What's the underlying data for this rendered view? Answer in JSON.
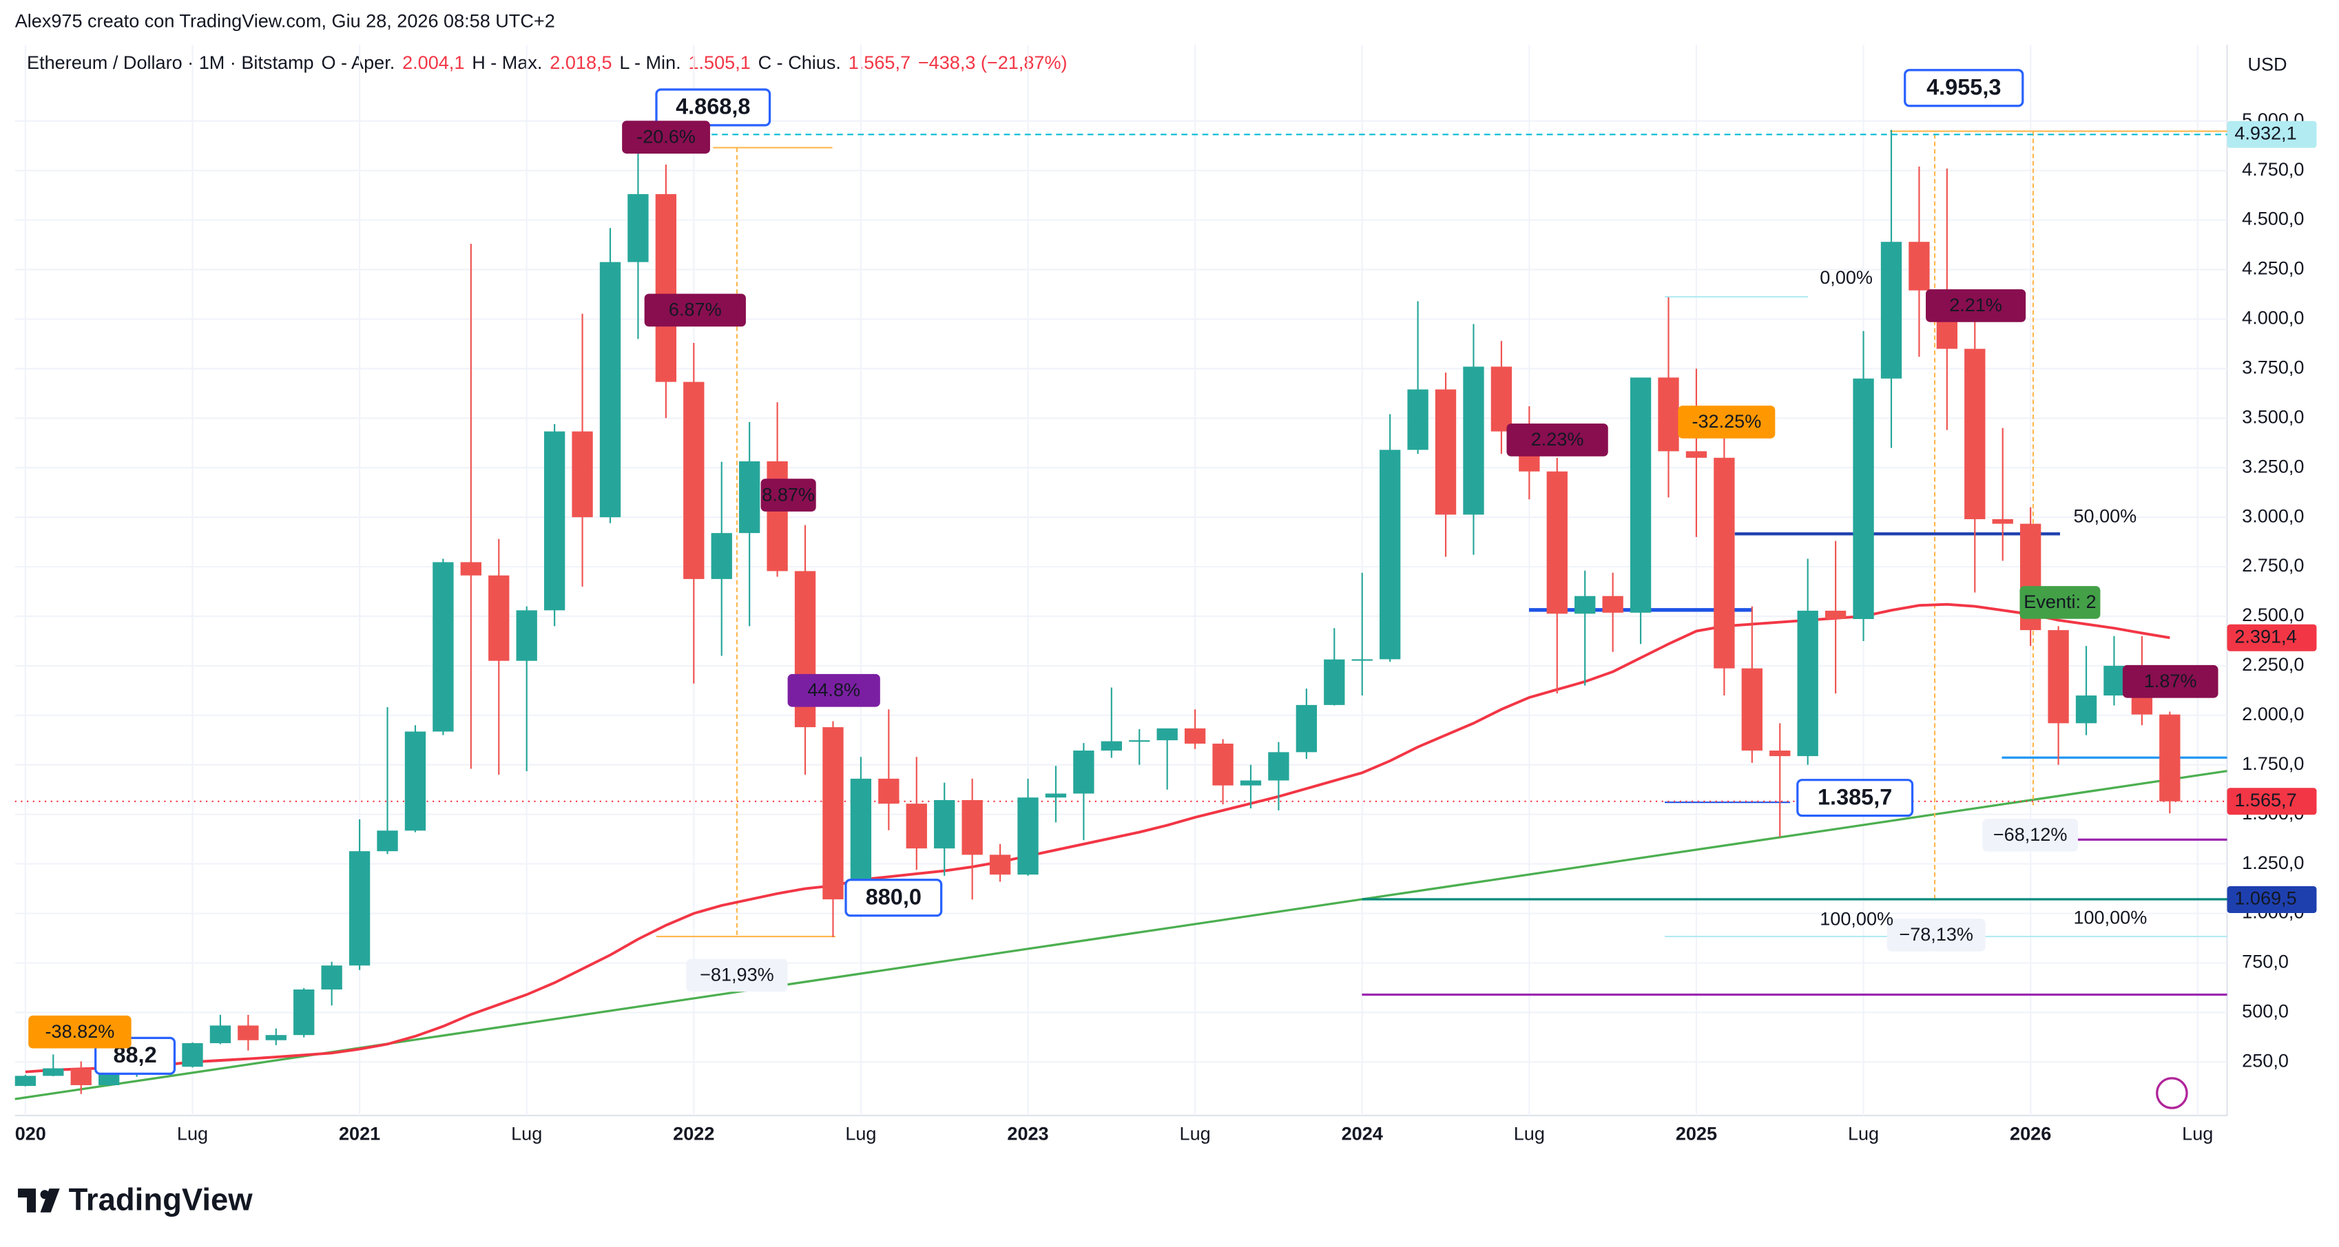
{
  "chart_data": {
    "type": "candlestick",
    "title": "Alex975 creato con TradingView.com, Giu 28, 2026 08:58 UTC+2",
    "legend_parts": [
      "Ethereum / Dollaro · 1M · Bitstamp",
      "O - Aper.",
      "2.004,1",
      "H - Max.",
      "2.018,5",
      "L - Min.",
      "1.505,1",
      "C - Chius.",
      "1.565,7",
      "−438,3 (−21,87%)"
    ],
    "currency": "USD",
    "brand": "TradingView",
    "categories": [
      "020",
      null,
      null,
      null,
      null,
      null,
      "Lug",
      null,
      null,
      null,
      null,
      null,
      "2021",
      null,
      null,
      null,
      null,
      null,
      "Lug",
      null,
      null,
      null,
      null,
      null,
      "2022",
      null,
      null,
      null,
      null,
      null,
      "Lug",
      null,
      null,
      null,
      null,
      null,
      "2023",
      null,
      null,
      null,
      null,
      null,
      "Lug",
      null,
      null,
      null,
      null,
      null,
      "2024",
      null,
      null,
      null,
      null,
      null,
      "Lug",
      null,
      null,
      null,
      null,
      null,
      "2025",
      null,
      null,
      null,
      null,
      null,
      "Lug",
      null,
      null,
      null,
      null,
      null,
      "2026",
      null,
      null,
      null,
      null,
      null,
      "Lug"
    ],
    "series": [
      {
        "name": "Ethereum / Dollaro",
        "type": "candlestick",
        "up_color": "#26a69a",
        "down_color": "#ef5350",
        "open": [
          129,
          180,
          218,
          133,
          206,
          231,
          226,
          345,
          434,
          360,
          386,
          616,
          737,
          1314,
          1418,
          1918,
          2773,
          2706,
          2275,
          2530,
          3433,
          3000,
          4288,
          4631,
          3683,
          2688,
          2920,
          3282,
          2728,
          1940,
          1071,
          1680,
          1554,
          1328,
          1572,
          1296,
          1196,
          1585,
          1605,
          1822,
          1869,
          1874,
          1934,
          1857,
          1646,
          1671,
          1814,
          2052,
          2282,
          2283,
          3340,
          3645,
          3013,
          3760,
          3433,
          3231,
          2513,
          2602,
          2518,
          3705,
          3333,
          3300,
          2237,
          1822,
          1794,
          2528,
          2486,
          3700,
          4390,
          4145,
          3850,
          2990,
          2967,
          2430,
          1960,
          2100,
          2250,
          2004.1,
          null
        ],
        "high": [
          185,
          288,
          253,
          228,
          247,
          253,
          349,
          488,
          488,
          419,
          623,
          756,
          1475,
          2041,
          1950,
          2790,
          4380,
          2890,
          2550,
          3470,
          4027,
          4460,
          4868.8,
          4780,
          3880,
          3280,
          3480,
          3580,
          2960,
          1970,
          1790,
          2030,
          1790,
          1660,
          1680,
          1350,
          1680,
          1745,
          1860,
          2140,
          1930,
          1930,
          2030,
          1880,
          1750,
          1865,
          2135,
          2440,
          2720,
          3520,
          4090,
          3730,
          3975,
          3890,
          3560,
          3300,
          2730,
          2720,
          3680,
          4110,
          3750,
          3440,
          2550,
          1960,
          2790,
          2880,
          3940,
          4955.3,
          4770,
          4760,
          4100,
          3450,
          3050,
          2450,
          2350,
          2400,
          2400,
          2018.5,
          null
        ],
        "low": [
          127,
          178,
          88.2,
          130,
          175,
          215,
          222,
          340,
          308,
          335,
          374,
          535,
          714,
          1300,
          1410,
          1900,
          1730,
          1700,
          1718,
          2450,
          2650,
          2970,
          3900,
          3500,
          2160,
          2300,
          2450,
          2700,
          1700,
          880,
          1000,
          1420,
          1220,
          1190,
          1070,
          1160,
          1190,
          1460,
          1370,
          1785,
          1750,
          1625,
          1830,
          1550,
          1530,
          1520,
          1780,
          2050,
          2100,
          2270,
          3320,
          2800,
          2810,
          3320,
          3090,
          2110,
          2150,
          2320,
          2360,
          3100,
          2900,
          2100,
          1760,
          1385.7,
          1750,
          2110,
          2375,
          3350,
          3810,
          3440,
          2620,
          2780,
          2350,
          1750,
          1900,
          2050,
          1950,
          1505.1,
          null
        ],
        "close": [
          180,
          218,
          133,
          206,
          231,
          226,
          345,
          434,
          360,
          386,
          616,
          737,
          1314,
          1418,
          1918,
          2773,
          2706,
          2275,
          2530,
          3433,
          3000,
          4288,
          4631,
          3683,
          2688,
          2920,
          3282,
          2728,
          1940,
          1071,
          1680,
          1554,
          1328,
          1572,
          1296,
          1196,
          1585,
          1605,
          1822,
          1869,
          1874,
          1934,
          1857,
          1646,
          1671,
          1814,
          2052,
          2282,
          2283,
          3340,
          3645,
          3013,
          3760,
          3433,
          3231,
          2513,
          2602,
          2518,
          3705,
          3333,
          3300,
          2237,
          1822,
          1794,
          2528,
          2486,
          3700,
          4390,
          4145,
          3850,
          2990,
          2967,
          2430,
          1960,
          2100,
          2250,
          2004.1,
          1565.7,
          null
        ]
      },
      {
        "type": "line",
        "color": "#f23645",
        "values": [
          200,
          210,
          215,
          220,
          228,
          235,
          250,
          258,
          266,
          275,
          285,
          295,
          315,
          340,
          380,
          430,
          490,
          540,
          590,
          650,
          720,
          790,
          870,
          940,
          1000,
          1040,
          1070,
          1100,
          1125,
          1140,
          1170,
          1185,
          1200,
          1215,
          1235,
          1260,
          1290,
          1320,
          1350,
          1380,
          1410,
          1445,
          1485,
          1520,
          1555,
          1590,
          1630,
          1670,
          1710,
          1770,
          1840,
          1900,
          1960,
          2030,
          2090,
          2130,
          2170,
          2220,
          2290,
          2360,
          2425,
          2450,
          2460,
          2470,
          2480,
          2490,
          2500,
          2530,
          2555,
          2560,
          2550,
          2530,
          2510,
          2480,
          2460,
          2440,
          2415,
          2391.4,
          null
        ]
      }
    ],
    "ylim": [
      -20,
      5385
    ],
    "yticks": [
      {
        "value": 250,
        "label": "250,0"
      },
      {
        "value": 500,
        "label": "500,0"
      },
      {
        "value": 750,
        "label": "750,0"
      },
      {
        "value": 1000,
        "label": "1.000,0"
      },
      {
        "value": 1250,
        "label": "1.250,0"
      },
      {
        "value": 1500,
        "label": "1.500,0"
      },
      {
        "value": 1750,
        "label": "1.750,0"
      },
      {
        "value": 2000,
        "label": "2.000,0"
      },
      {
        "value": 2250,
        "label": "2.250,0"
      },
      {
        "value": 2500,
        "label": "2.500,0"
      },
      {
        "value": 2750,
        "label": "2.750,0"
      },
      {
        "value": 3000,
        "label": "3.000,0"
      },
      {
        "value": 3250,
        "label": "3.250,0"
      },
      {
        "value": 3500,
        "label": "3.500,0"
      },
      {
        "value": 3750,
        "label": "3.750,0"
      },
      {
        "value": 4000,
        "label": "4.000,0"
      },
      {
        "value": 4250,
        "label": "4.250,0"
      },
      {
        "value": 4500,
        "label": "4.500,0"
      },
      {
        "value": 4750,
        "label": "4.750,0"
      },
      {
        "value": 5000,
        "label": "5.000,0"
      }
    ],
    "grid": true,
    "price_labels": [
      {
        "value": 4932.1,
        "label": "4.932,1",
        "color": "#b2ebf2",
        "text_color": "#131722"
      },
      {
        "value": 2391.4,
        "label": "2.391,4",
        "color": "#f23645",
        "text_color": "#ffffff"
      },
      {
        "value": 1565.7,
        "label": "1.565,7",
        "color": "#f23645",
        "text_color": "#ffffff"
      },
      {
        "value": 1069.5,
        "label": "1.069,5",
        "color": "#1e40af",
        "text_color": "#ffffff"
      }
    ],
    "callouts": [
      {
        "text": "4.868,8",
        "color": "#1848cc"
      },
      {
        "text": "4.955,3",
        "color": "#1848cc"
      },
      {
        "text": "1.385,7",
        "color": "#f23645"
      },
      {
        "text": "880,0",
        "color": "#f23645"
      },
      {
        "text": "88,2",
        "color": "#f23645"
      }
    ],
    "tags": [
      {
        "text": "-20.6%",
        "color": "#880e4f"
      },
      {
        "text": "6.87%",
        "color": "#880e4f"
      },
      {
        "text": "8.87%",
        "color": "#880e4f"
      },
      {
        "text": "44.8%",
        "color": "#7b1fa2"
      },
      {
        "text": "2.23%",
        "color": "#880e4f"
      },
      {
        "text": "-32.25%",
        "color": "#ff9800"
      },
      {
        "text": "2.21%",
        "color": "#880e4f"
      },
      {
        "text": "1.87%",
        "color": "#880e4f"
      },
      {
        "text": "-38.82%",
        "color": "#ff9800"
      },
      {
        "text": "Eventi: 2",
        "color": "#43a047"
      }
    ],
    "measures": [
      "−81,93%",
      "−78,13%",
      "−68,12%"
    ],
    "fib_labels": [
      {
        "text": "50,00%",
        "color": "#1e53e5"
      },
      {
        "text": "0,00%",
        "color": "#b2ebf2"
      },
      {
        "text": "100,00%",
        "color": "#b2ebf2"
      },
      {
        "text": "100,00%",
        "color": "#b2ebf2"
      }
    ]
  }
}
